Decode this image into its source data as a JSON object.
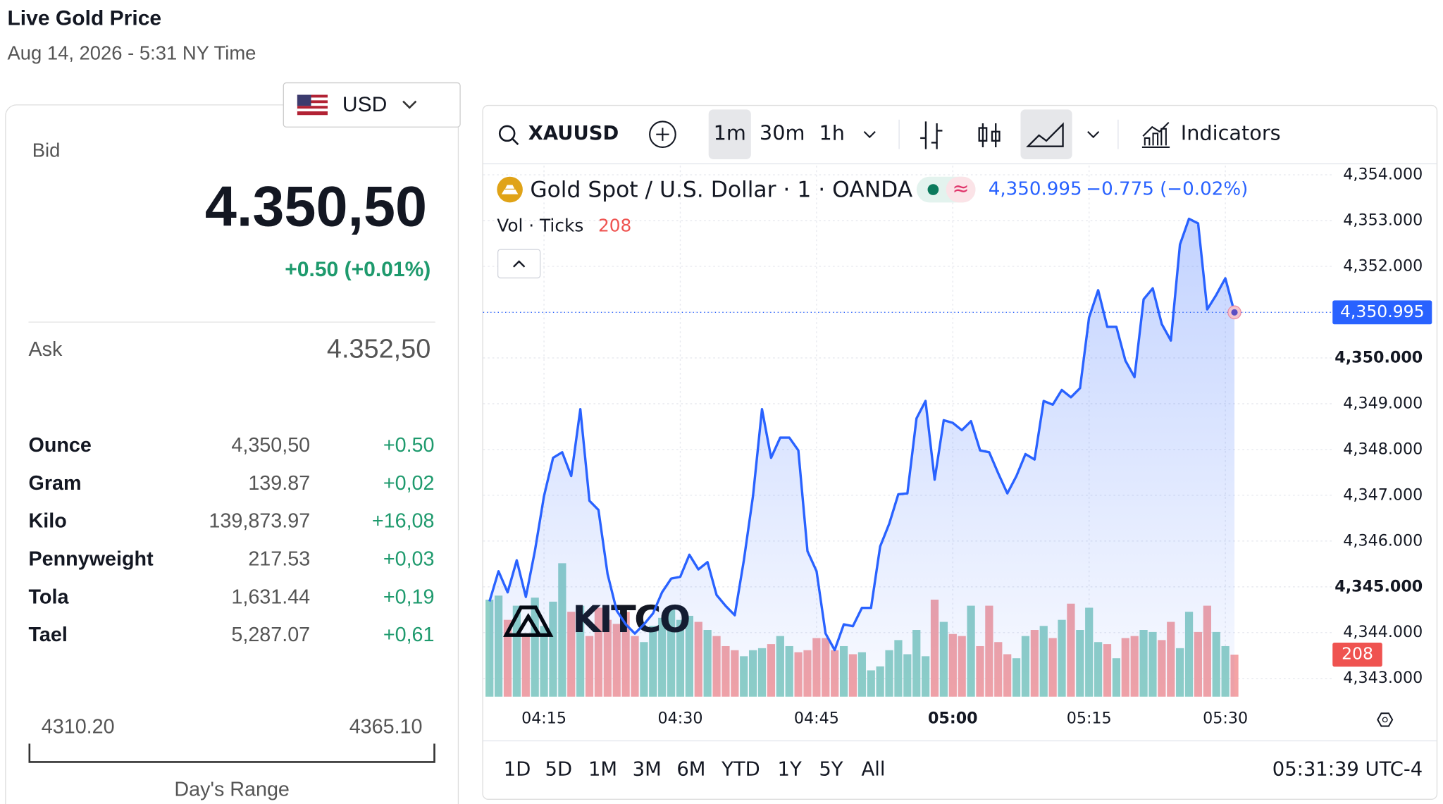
{
  "header": {
    "title": "Live Gold Price",
    "subtitle": "Aug 14, 2026 - 5:31 NY Time"
  },
  "currency": "USD",
  "quote": {
    "bid_label": "Bid",
    "bid": "4.350,50",
    "change": "+0.50 (+0.01%)",
    "ask_label": "Ask",
    "ask": "4.352,50"
  },
  "units": {
    "rows": [
      [
        "Ounce",
        "4,350,50",
        "+0.50"
      ],
      [
        "Gram",
        "139.87",
        "+0,02"
      ],
      [
        "Kilo",
        "139,873.97",
        "+16,08"
      ],
      [
        "Pennyweight",
        "217.53",
        "+0,03"
      ],
      [
        "Tola",
        "1,631.44",
        "+0,19"
      ],
      [
        "Tael",
        "5,287.07",
        "+0,61"
      ]
    ]
  },
  "day_range": {
    "low": "4310.20",
    "high": "4365.10",
    "label": "Day's Range"
  },
  "toolbar": {
    "symbol": "XAUUSD",
    "intervals": [
      "1m",
      "30m",
      "1h"
    ],
    "indicators": "Indicators",
    "ranges": [
      "1D",
      "5D",
      "1M",
      "3M",
      "6M",
      "YTD",
      "1Y",
      "5Y",
      "All"
    ],
    "clock": "05:31:39 UTC-4"
  },
  "chart_data": {
    "type": "line",
    "title": "Gold Spot / U.S. Dollar · 1 · OANDA",
    "last_price_label": "4,350.995",
    "change_label": "−0.775 (−0.02%)",
    "volume_label": "Vol · Ticks",
    "watermark": "KITCO",
    "x": [
      "04:09",
      "04:10",
      "04:11",
      "04:12",
      "04:13",
      "04:14",
      "04:15",
      "04:16",
      "04:17",
      "04:18",
      "04:19",
      "04:20",
      "04:21",
      "04:22",
      "04:23",
      "04:24",
      "04:25",
      "04:26",
      "04:27",
      "04:28",
      "04:29",
      "04:30",
      "04:31",
      "04:32",
      "04:33",
      "04:34",
      "04:35",
      "04:36",
      "04:37",
      "04:38",
      "04:39",
      "04:40",
      "04:41",
      "04:42",
      "04:43",
      "04:44",
      "04:45",
      "04:46",
      "04:47",
      "04:48",
      "04:49",
      "04:50",
      "04:51",
      "04:52",
      "04:53",
      "04:54",
      "04:55",
      "04:56",
      "04:57",
      "04:58",
      "04:59",
      "05:00",
      "05:01",
      "05:02",
      "05:03",
      "05:04",
      "05:05",
      "05:06",
      "05:07",
      "05:08",
      "05:09",
      "05:10",
      "05:11",
      "05:12",
      "05:13",
      "05:14",
      "05:15",
      "05:16",
      "05:17",
      "05:18",
      "05:19",
      "05:20",
      "05:21",
      "05:22",
      "05:23",
      "05:24",
      "05:25",
      "05:26",
      "05:27",
      "05:28",
      "05:29",
      "05:30",
      "05:31"
    ],
    "values": [
      4344.68,
      4345.34,
      4344.88,
      4345.58,
      4344.78,
      4345.78,
      4346.98,
      4347.82,
      4347.94,
      4347.42,
      4348.88,
      4346.88,
      4346.68,
      4345.28,
      4344.48,
      4344.18,
      4343.98,
      4344.18,
      4344.42,
      4344.88,
      4345.18,
      4345.22,
      4345.7,
      4345.38,
      4345.54,
      4344.82,
      4344.58,
      4344.38,
      4345.58,
      4346.98,
      4348.88,
      4347.82,
      4348.26,
      4348.26,
      4347.98,
      4345.78,
      4345.34,
      4343.98,
      4343.62,
      4344.18,
      4344.14,
      4344.54,
      4344.54,
      4345.88,
      4346.38,
      4347.02,
      4347.04,
      4348.68,
      4349.06,
      4347.34,
      4348.64,
      4348.58,
      4348.42,
      4348.62,
      4347.98,
      4347.94,
      4347.48,
      4347.04,
      4347.42,
      4347.9,
      4347.78,
      4349.06,
      4348.98,
      4349.3,
      4349.14,
      4349.34,
      4350.88,
      4351.48,
      4350.68,
      4350.68,
      4349.94,
      4349.58,
      4351.28,
      4351.52,
      4350.74,
      4350.38,
      4352.48,
      4353.04,
      4352.94,
      4351.06,
      4351.38,
      4351.74,
      4350.995
    ],
    "color": "#2962ff",
    "volume": {
      "values": [
        480,
        500,
        380,
        450,
        300,
        490,
        350,
        470,
        660,
        420,
        450,
        300,
        440,
        380,
        360,
        420,
        300,
        270,
        350,
        390,
        430,
        380,
        400,
        370,
        330,
        300,
        250,
        230,
        200,
        230,
        240,
        260,
        300,
        250,
        220,
        230,
        290,
        290,
        230,
        250,
        210,
        220,
        130,
        150,
        230,
        280,
        210,
        330,
        200,
        480,
        370,
        310,
        300,
        450,
        250,
        450,
        270,
        210,
        190,
        300,
        330,
        350,
        290,
        380,
        460,
        330,
        440,
        270,
        260,
        190,
        290,
        300,
        330,
        320,
        280,
        370,
        240,
        420,
        320,
        450,
        320,
        250,
        208
      ],
      "up_color": "#8fd0c6",
      "down_color": "#f4a3a5"
    },
    "xlim": [
      "04:08",
      "05:42"
    ],
    "xticks": [
      "04:15",
      "04:30",
      "04:45",
      "05:00",
      "05:15",
      "05:30"
    ],
    "ylim": [
      4342.6,
      4354.2
    ],
    "yticks": [
      {
        "value": 4343,
        "label": "4,343.000"
      },
      {
        "value": 4344,
        "label": "4,344.000"
      },
      {
        "value": 4345,
        "label": "4,345.000"
      },
      {
        "value": 4346,
        "label": "4,346.000"
      },
      {
        "value": 4347,
        "label": "4,347.000"
      },
      {
        "value": 4348,
        "label": "4,348.000"
      },
      {
        "value": 4349,
        "label": "4,349.000"
      },
      {
        "value": 4350,
        "label": "4,350.000"
      },
      {
        "value": 4351,
        "label": "4,351.000"
      },
      {
        "value": 4352,
        "label": "4,352.000"
      },
      {
        "value": 4353,
        "label": "4,353.000"
      },
      {
        "value": 4354,
        "label": "4,354.000"
      }
    ],
    "grid": true
  }
}
